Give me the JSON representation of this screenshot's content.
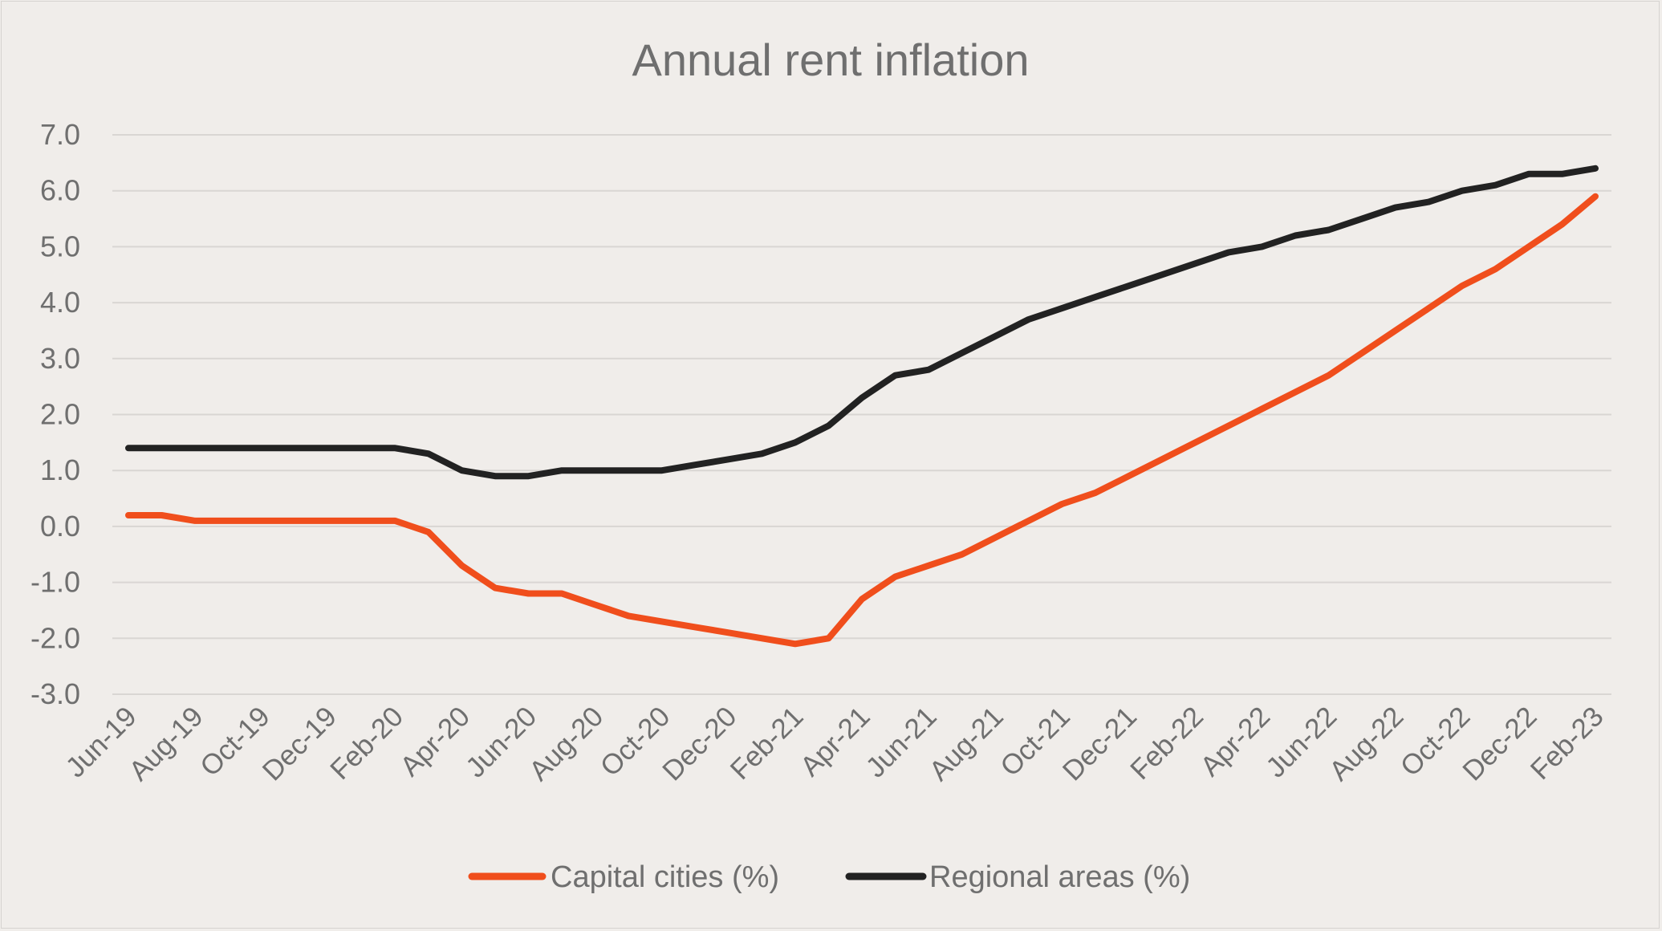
{
  "chart_data": {
    "type": "line",
    "title": "Annual rent inflation",
    "xlabel": "",
    "ylabel": "",
    "ylim": [
      -3,
      7
    ],
    "yticks": [
      "7.0",
      "6.0",
      "5.0",
      "4.0",
      "3.0",
      "2.0",
      "1.0",
      "0.0",
      "-1.0",
      "-2.0",
      "-3.0"
    ],
    "ytick_values": [
      7,
      6,
      5,
      4,
      3,
      2,
      1,
      0,
      -1,
      -2,
      -3
    ],
    "grid": true,
    "legend_position": "bottom",
    "categories": [
      "Jun-19",
      "Jul-19",
      "Aug-19",
      "Sep-19",
      "Oct-19",
      "Nov-19",
      "Dec-19",
      "Jan-20",
      "Feb-20",
      "Mar-20",
      "Apr-20",
      "May-20",
      "Jun-20",
      "Jul-20",
      "Aug-20",
      "Sep-20",
      "Oct-20",
      "Nov-20",
      "Dec-20",
      "Jan-21",
      "Feb-21",
      "Mar-21",
      "Apr-21",
      "May-21",
      "Jun-21",
      "Jul-21",
      "Aug-21",
      "Sep-21",
      "Oct-21",
      "Nov-21",
      "Dec-21",
      "Jan-22",
      "Feb-22",
      "Mar-22",
      "Apr-22",
      "May-22",
      "Jun-22",
      "Jul-22",
      "Aug-22",
      "Sep-22",
      "Oct-22",
      "Nov-22",
      "Dec-22",
      "Jan-23",
      "Feb-23"
    ],
    "xtick_labels": [
      "Jun-19",
      "Aug-19",
      "Oct-19",
      "Dec-19",
      "Feb-20",
      "Apr-20",
      "Jun-20",
      "Aug-20",
      "Oct-20",
      "Dec-20",
      "Feb-21",
      "Apr-21",
      "Jun-21",
      "Aug-21",
      "Oct-21",
      "Dec-21",
      "Feb-22",
      "Apr-22",
      "Jun-22",
      "Aug-22",
      "Oct-22",
      "Dec-22",
      "Feb-23"
    ],
    "series": [
      {
        "name": "Capital cities (%)",
        "color": "#f04e1c",
        "values": [
          0.2,
          0.2,
          0.1,
          0.1,
          0.1,
          0.1,
          0.1,
          0.1,
          0.1,
          -0.1,
          -0.7,
          -1.1,
          -1.2,
          -1.2,
          -1.4,
          -1.6,
          -1.7,
          -1.8,
          -1.9,
          -2.0,
          -2.1,
          -2.0,
          -1.3,
          -0.9,
          -0.7,
          -0.5,
          -0.2,
          0.1,
          0.4,
          0.6,
          0.9,
          1.2,
          1.5,
          1.8,
          2.1,
          2.4,
          2.7,
          3.1,
          3.5,
          3.9,
          4.3,
          4.6,
          5.0,
          5.4,
          5.9
        ]
      },
      {
        "name": "Regional areas (%)",
        "color": "#222222",
        "values": [
          1.4,
          1.4,
          1.4,
          1.4,
          1.4,
          1.4,
          1.4,
          1.4,
          1.4,
          1.3,
          1.0,
          0.9,
          0.9,
          1.0,
          1.0,
          1.0,
          1.0,
          1.1,
          1.2,
          1.3,
          1.5,
          1.8,
          2.3,
          2.7,
          2.8,
          3.1,
          3.4,
          3.7,
          3.9,
          4.1,
          4.3,
          4.5,
          4.7,
          4.9,
          5.0,
          5.2,
          5.3,
          5.5,
          5.7,
          5.8,
          6.0,
          6.1,
          6.3,
          6.3,
          6.4
        ]
      }
    ]
  }
}
